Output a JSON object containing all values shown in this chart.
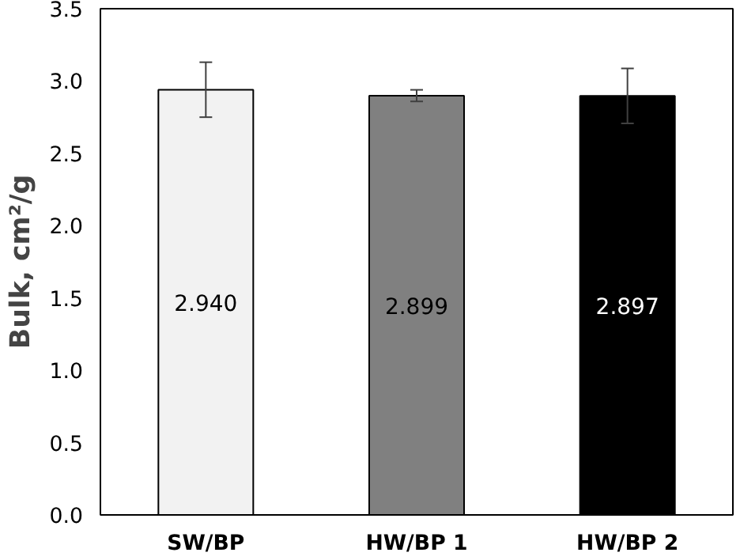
{
  "chart_data": {
    "type": "bar",
    "ylabel": "Bulk, cm²/g",
    "categories": [
      "SW/BP",
      "HW/BP 1",
      "HW/BP 2"
    ],
    "values": [
      2.94,
      2.899,
      2.897
    ],
    "colors": [
      "#f2f2f2",
      "#808080",
      "#000000"
    ],
    "errors": [
      0.19,
      0.04,
      0.19
    ],
    "value_labels": [
      "2.940",
      "2.899",
      "2.897"
    ],
    "ylim": [
      0,
      3.5
    ],
    "yticks": [
      {
        "value": 0,
        "label": "0.0"
      },
      {
        "value": 0.5,
        "label": "0.5"
      },
      {
        "value": 1,
        "label": "1.0"
      },
      {
        "value": 1.5,
        "label": "1.5"
      },
      {
        "value": 2,
        "label": "2.0"
      },
      {
        "value": 2.5,
        "label": "2.5"
      },
      {
        "value": 3,
        "label": "3.0"
      },
      {
        "value": 3.5,
        "label": "3.5"
      }
    ],
    "grid": false
  }
}
